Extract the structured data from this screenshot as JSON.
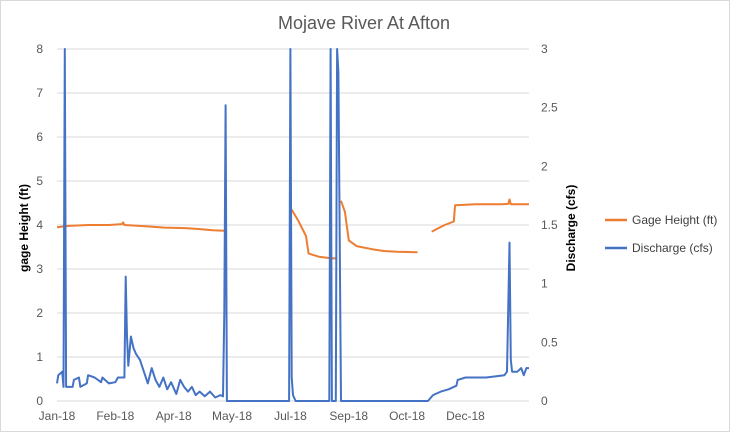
{
  "chart_data": {
    "type": "line",
    "title": "Mojave River At Afton",
    "ylabel_left": "gage Height (ft)",
    "ylabel_right": "Discharge (cfs)",
    "xlabel": "",
    "xlim": [
      "2018-01-01",
      "2018-12-31"
    ],
    "x_tick_labels": [
      "Jan-18",
      "Feb-18",
      "Apr-18",
      "May-18",
      "Jul-18",
      "Sep-18",
      "Oct-18",
      "Dec-18"
    ],
    "x_tick_dates": [
      "2018-01-01",
      "2018-02-15",
      "2018-04-01",
      "2018-05-16",
      "2018-06-30",
      "2018-08-14",
      "2018-09-28",
      "2018-11-12"
    ],
    "y_left": {
      "lim": [
        0,
        8
      ],
      "ticks": [
        0,
        1,
        2,
        3,
        4,
        5,
        6,
        7,
        8
      ],
      "tick_labels": [
        "0",
        "1",
        "2",
        "3",
        "4",
        "5",
        "6",
        "7",
        "8"
      ]
    },
    "y_right": {
      "lim": [
        0,
        3
      ],
      "ticks": [
        0,
        0.5,
        1,
        1.5,
        2,
        2.5,
        3
      ],
      "tick_labels": [
        "0",
        "0.5",
        "1",
        "1.5",
        "2",
        "2.5",
        "3"
      ]
    },
    "grid": "horizontal",
    "legend_position": "right",
    "series": [
      {
        "name": "Gage Height (ft)",
        "axis": "left",
        "color": "#ed7d31",
        "segments": [
          [
            [
              "2018-01-01",
              3.95
            ],
            [
              "2018-01-10",
              3.98
            ],
            [
              "2018-01-25",
              4.0
            ],
            [
              "2018-02-10",
              4.0
            ],
            [
              "2018-02-20",
              4.02
            ],
            [
              "2018-02-21",
              4.06
            ],
            [
              "2018-02-22",
              4.0
            ],
            [
              "2018-03-10",
              3.97
            ],
            [
              "2018-03-25",
              3.94
            ],
            [
              "2018-04-10",
              3.93
            ],
            [
              "2018-04-20",
              3.91
            ],
            [
              "2018-05-01",
              3.88
            ],
            [
              "2018-05-10",
              3.87
            ]
          ],
          [
            [
              "2018-06-29",
              3.56
            ],
            [
              "2018-06-30",
              3.54
            ]
          ],
          [
            [
              "2018-07-01",
              4.35
            ],
            [
              "2018-07-06",
              4.1
            ],
            [
              "2018-07-12",
              3.75
            ],
            [
              "2018-07-14",
              3.35
            ],
            [
              "2018-07-22",
              3.28
            ],
            [
              "2018-08-01",
              3.24
            ],
            [
              "2018-08-05",
              3.24
            ]
          ],
          [
            [
              "2018-08-08",
              4.55
            ],
            [
              "2018-08-11",
              4.3
            ],
            [
              "2018-08-14",
              3.65
            ],
            [
              "2018-08-20",
              3.52
            ],
            [
              "2018-09-01",
              3.45
            ],
            [
              "2018-09-10",
              3.41
            ],
            [
              "2018-09-20",
              3.39
            ],
            [
              "2018-10-06",
              3.38
            ]
          ],
          [
            [
              "2018-10-17",
              3.85
            ],
            [
              "2018-10-27",
              4.0
            ],
            [
              "2018-11-03",
              4.08
            ],
            [
              "2018-11-04",
              4.45
            ],
            [
              "2018-11-20",
              4.47
            ],
            [
              "2018-12-10",
              4.47
            ],
            [
              "2018-12-15",
              4.48
            ],
            [
              "2018-12-16",
              4.58
            ],
            [
              "2018-12-17",
              4.47
            ],
            [
              "2018-12-31",
              4.47
            ]
          ]
        ]
      },
      {
        "name": "Discharge (cfs)",
        "axis": "right",
        "color": "#4472c4",
        "segments": [
          [
            [
              "2018-01-01",
              0.15
            ],
            [
              "2018-01-02",
              0.22
            ],
            [
              "2018-01-05",
              0.25
            ],
            [
              "2018-01-06",
              0.12
            ],
            [
              "2018-01-07",
              3.0
            ],
            [
              "2018-01-08",
              0.12
            ],
            [
              "2018-01-13",
              0.12
            ],
            [
              "2018-01-14",
              0.18
            ],
            [
              "2018-01-18",
              0.2
            ],
            [
              "2018-01-19",
              0.12
            ],
            [
              "2018-01-24",
              0.15
            ],
            [
              "2018-01-25",
              0.22
            ],
            [
              "2018-01-30",
              0.2
            ],
            [
              "2018-02-04",
              0.16
            ],
            [
              "2018-02-05",
              0.2
            ],
            [
              "2018-02-10",
              0.15
            ],
            [
              "2018-02-15",
              0.16
            ],
            [
              "2018-02-17",
              0.2
            ],
            [
              "2018-02-22",
              0.2
            ],
            [
              "2018-02-23",
              1.06
            ],
            [
              "2018-02-24",
              0.55
            ],
            [
              "2018-02-25",
              0.3
            ],
            [
              "2018-02-27",
              0.55
            ],
            [
              "2018-03-01",
              0.45
            ],
            [
              "2018-03-03",
              0.4
            ],
            [
              "2018-03-06",
              0.35
            ],
            [
              "2018-03-09",
              0.25
            ],
            [
              "2018-03-12",
              0.15
            ],
            [
              "2018-03-15",
              0.28
            ],
            [
              "2018-03-18",
              0.18
            ],
            [
              "2018-03-21",
              0.12
            ],
            [
              "2018-03-24",
              0.2
            ],
            [
              "2018-03-27",
              0.1
            ],
            [
              "2018-03-30",
              0.16
            ],
            [
              "2018-04-03",
              0.06
            ],
            [
              "2018-04-06",
              0.18
            ],
            [
              "2018-04-09",
              0.12
            ],
            [
              "2018-04-12",
              0.08
            ],
            [
              "2018-04-15",
              0.12
            ],
            [
              "2018-04-18",
              0.05
            ],
            [
              "2018-04-21",
              0.08
            ],
            [
              "2018-04-25",
              0.04
            ],
            [
              "2018-04-29",
              0.08
            ],
            [
              "2018-05-03",
              0.03
            ],
            [
              "2018-05-07",
              0.05
            ],
            [
              "2018-05-09",
              0.04
            ],
            [
              "2018-05-10",
              0.75
            ],
            [
              "2018-05-11",
              2.52
            ],
            [
              "2018-05-12",
              0.0
            ],
            [
              "2018-05-25",
              0.0
            ],
            [
              "2018-06-10",
              0.0
            ],
            [
              "2018-06-29",
              0.0
            ],
            [
              "2018-06-30",
              3.0
            ],
            [
              "2018-07-01",
              0.2
            ],
            [
              "2018-07-02",
              0.05
            ],
            [
              "2018-07-04",
              0.0
            ],
            [
              "2018-07-20",
              0.0
            ],
            [
              "2018-07-30",
              0.0
            ],
            [
              "2018-07-31",
              3.0
            ],
            [
              "2018-08-01",
              0.0
            ],
            [
              "2018-08-04",
              0.0
            ],
            [
              "2018-08-05",
              3.0
            ],
            [
              "2018-08-06",
              2.8
            ],
            [
              "2018-08-08",
              0.0
            ],
            [
              "2018-09-15",
              0.0
            ],
            [
              "2018-10-10",
              0.0
            ],
            [
              "2018-10-14",
              0.0
            ],
            [
              "2018-10-18",
              0.05
            ],
            [
              "2018-10-24",
              0.08
            ],
            [
              "2018-10-30",
              0.1
            ],
            [
              "2018-11-05",
              0.13
            ],
            [
              "2018-11-06",
              0.18
            ],
            [
              "2018-11-12",
              0.2
            ],
            [
              "2018-11-20",
              0.2
            ],
            [
              "2018-11-28",
              0.2
            ],
            [
              "2018-12-05",
              0.21
            ],
            [
              "2018-12-12",
              0.22
            ],
            [
              "2018-12-14",
              0.25
            ],
            [
              "2018-12-16",
              1.35
            ],
            [
              "2018-12-17",
              0.35
            ],
            [
              "2018-12-18",
              0.25
            ],
            [
              "2018-12-22",
              0.25
            ],
            [
              "2018-12-25",
              0.28
            ],
            [
              "2018-12-27",
              0.22
            ],
            [
              "2018-12-29",
              0.28
            ],
            [
              "2018-12-31",
              0.28
            ]
          ]
        ]
      }
    ]
  }
}
